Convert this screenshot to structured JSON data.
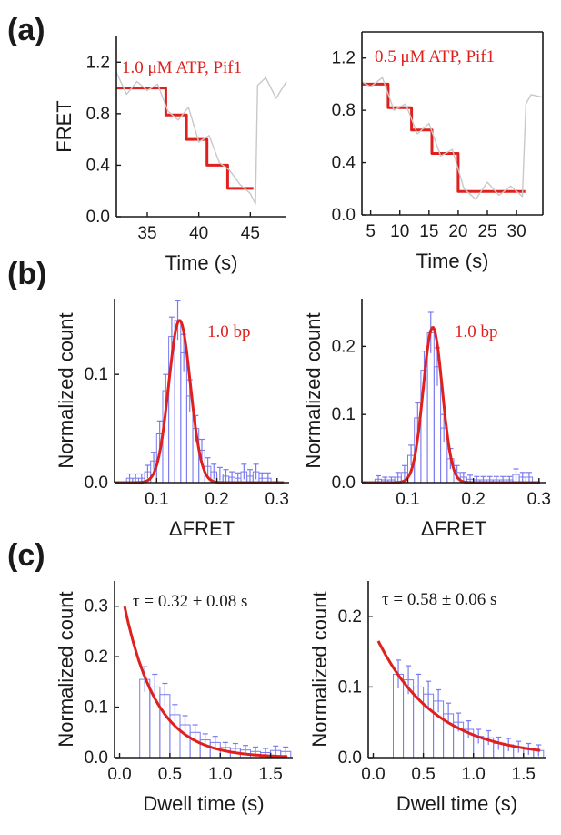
{
  "panel_labels": [
    "(a)",
    "(b)",
    "(c)"
  ],
  "colors": {
    "fit": "#e0201c",
    "raw": "#c8c8c8",
    "hist": "#7b7bf0",
    "axis": "#1a1a1a"
  },
  "chart_data": [
    {
      "id": "a-left",
      "type": "line",
      "annotation": "1.0 μM ATP, Pif1",
      "xlabel": "Time (s)",
      "ylabel": "FRET",
      "xlim": [
        32,
        48.5
      ],
      "ylim": [
        0.0,
        1.4
      ],
      "xticks": [
        "35",
        "40",
        "45"
      ],
      "xtick_values": [
        35,
        40,
        45
      ],
      "yticks": [
        "0.0",
        "0.4",
        "0.8",
        "1.2"
      ],
      "ytick_values": [
        0.0,
        0.4,
        0.8,
        1.2
      ],
      "series": [
        {
          "role": "fit",
          "x": [
            32.0,
            36.8,
            36.8,
            38.8,
            38.8,
            40.8,
            40.8,
            42.8,
            42.8,
            45.3
          ],
          "y": [
            1.0,
            1.0,
            0.79,
            0.79,
            0.6,
            0.6,
            0.4,
            0.4,
            0.22,
            0.22
          ]
        },
        {
          "role": "raw",
          "x": [
            32.0,
            33.0,
            34.0,
            35.0,
            36.0,
            37.0,
            38.0,
            39.0,
            40.0,
            41.0,
            42.0,
            43.0,
            44.0,
            45.0,
            45.5,
            45.7,
            46.5,
            47.5,
            48.5
          ],
          "y": [
            1.12,
            0.95,
            1.05,
            0.98,
            1.03,
            0.82,
            0.75,
            0.85,
            0.58,
            0.63,
            0.42,
            0.36,
            0.25,
            0.18,
            0.1,
            1.02,
            1.08,
            0.92,
            1.05
          ]
        }
      ]
    },
    {
      "id": "a-right",
      "type": "line",
      "annotation": "0.5 μM ATP, Pif1",
      "xlabel": "Time (s)",
      "ylabel": "",
      "xlim": [
        3.5,
        34.5
      ],
      "ylim": [
        0.0,
        1.4
      ],
      "xticks": [
        "5",
        "10",
        "15",
        "20",
        "25",
        "30"
      ],
      "xtick_values": [
        5,
        10,
        15,
        20,
        25,
        30
      ],
      "yticks": [
        "0.0",
        "0.4",
        "0.8",
        "1.2"
      ],
      "ytick_values": [
        0.0,
        0.4,
        0.8,
        1.2
      ],
      "series": [
        {
          "role": "fit",
          "x": [
            3.5,
            8.0,
            8.0,
            12.0,
            12.0,
            15.5,
            15.5,
            20.0,
            20.0,
            31.5
          ],
          "y": [
            1.0,
            1.0,
            0.82,
            0.82,
            0.65,
            0.65,
            0.47,
            0.47,
            0.18,
            0.18
          ]
        },
        {
          "role": "raw",
          "x": [
            3.5,
            5.0,
            7.0,
            9.0,
            11.0,
            13.0,
            15.0,
            17.0,
            19.0,
            21.0,
            23.0,
            25.0,
            27.0,
            29.0,
            31.0,
            31.6,
            32.5,
            34.5
          ],
          "y": [
            1.02,
            0.98,
            1.05,
            0.8,
            0.85,
            0.62,
            0.7,
            0.45,
            0.5,
            0.2,
            0.12,
            0.25,
            0.15,
            0.22,
            0.14,
            0.85,
            0.92,
            0.9
          ]
        }
      ]
    },
    {
      "id": "b-left",
      "type": "bar",
      "annotation": "1.0 bp",
      "xlabel": "ΔFRET",
      "ylabel": "Normalized count",
      "xlim": [
        0.03,
        0.32
      ],
      "ylim": [
        0.0,
        0.17
      ],
      "xticks": [
        "0.1",
        "0.2",
        "0.3"
      ],
      "xtick_values": [
        0.1,
        0.2,
        0.3
      ],
      "yticks": [
        "0.0",
        "0.1"
      ],
      "ytick_values": [
        0.0,
        0.1
      ],
      "bin_width": 0.01,
      "x": [
        0.055,
        0.065,
        0.075,
        0.085,
        0.095,
        0.105,
        0.115,
        0.125,
        0.135,
        0.145,
        0.155,
        0.165,
        0.175,
        0.185,
        0.195,
        0.205,
        0.215,
        0.225,
        0.235,
        0.245,
        0.255,
        0.265,
        0.275,
        0.285
      ],
      "values": [
        0.004,
        0.004,
        0.004,
        0.01,
        0.02,
        0.045,
        0.085,
        0.135,
        0.15,
        0.12,
        0.08,
        0.05,
        0.03,
        0.015,
        0.01,
        0.008,
        0.006,
        0.005,
        0.004,
        0.01,
        0.006,
        0.01,
        0.004,
        0.004
      ],
      "errors": [
        0.004,
        0.004,
        0.004,
        0.006,
        0.008,
        0.012,
        0.015,
        0.018,
        0.018,
        0.017,
        0.015,
        0.012,
        0.01,
        0.008,
        0.007,
        0.006,
        0.006,
        0.005,
        0.005,
        0.007,
        0.006,
        0.007,
        0.005,
        0.005
      ],
      "fit": {
        "type": "gaussian",
        "amplitude": 0.15,
        "center": 0.138,
        "sigma": 0.018
      }
    },
    {
      "id": "b-right",
      "type": "bar",
      "annotation": "1.0 bp",
      "xlabel": "ΔFRET",
      "ylabel": "Normalized count",
      "xlim": [
        0.03,
        0.31
      ],
      "ylim": [
        0.0,
        0.27
      ],
      "xticks": [
        "0.1",
        "0.2",
        "0.3"
      ],
      "xtick_values": [
        0.1,
        0.2,
        0.3
      ],
      "yticks": [
        "0.0",
        "0.1",
        "0.2"
      ],
      "ytick_values": [
        0.0,
        0.1,
        0.2
      ],
      "bin_width": 0.01,
      "x": [
        0.055,
        0.065,
        0.075,
        0.085,
        0.095,
        0.105,
        0.115,
        0.125,
        0.135,
        0.145,
        0.155,
        0.165,
        0.175,
        0.185,
        0.195,
        0.205,
        0.215,
        0.225,
        0.235,
        0.245,
        0.255,
        0.265,
        0.275,
        0.285
      ],
      "values": [
        0.005,
        0.004,
        0.004,
        0.008,
        0.015,
        0.04,
        0.095,
        0.165,
        0.22,
        0.17,
        0.08,
        0.035,
        0.015,
        0.008,
        0.005,
        0.004,
        0.004,
        0.004,
        0.004,
        0.004,
        0.004,
        0.012,
        0.008,
        0.008
      ],
      "errors": [
        0.005,
        0.004,
        0.004,
        0.007,
        0.01,
        0.015,
        0.022,
        0.028,
        0.03,
        0.028,
        0.02,
        0.015,
        0.01,
        0.007,
        0.006,
        0.005,
        0.005,
        0.005,
        0.005,
        0.005,
        0.005,
        0.008,
        0.007,
        0.007
      ],
      "fit": {
        "type": "gaussian",
        "amplitude": 0.228,
        "center": 0.138,
        "sigma": 0.0145
      }
    },
    {
      "id": "c-left",
      "type": "bar",
      "annotation": "τ = 0.32 ± 0.08 s",
      "xlabel": "Dwell time (s)",
      "ylabel": "Normalized count",
      "xlim": [
        -0.05,
        1.72
      ],
      "ylim": [
        0.0,
        0.35
      ],
      "xticks": [
        "0.0",
        "0.5",
        "1.0",
        "1.5"
      ],
      "xtick_values": [
        0.0,
        0.5,
        1.0,
        1.5
      ],
      "yticks": [
        "0.0",
        "0.1",
        "0.2",
        "0.3"
      ],
      "ytick_values": [
        0.0,
        0.1,
        0.2,
        0.3
      ],
      "bin_width": 0.1,
      "x": [
        0.25,
        0.35,
        0.45,
        0.55,
        0.65,
        0.75,
        0.85,
        0.95,
        1.05,
        1.15,
        1.25,
        1.35,
        1.45,
        1.55,
        1.65
      ],
      "values": [
        0.155,
        0.14,
        0.125,
        0.085,
        0.065,
        0.05,
        0.035,
        0.03,
        0.02,
        0.018,
        0.015,
        0.012,
        0.01,
        0.014,
        0.012
      ],
      "errors": [
        0.025,
        0.025,
        0.022,
        0.02,
        0.018,
        0.015,
        0.012,
        0.012,
        0.01,
        0.01,
        0.009,
        0.009,
        0.008,
        0.009,
        0.009
      ],
      "fit": {
        "type": "exponential",
        "amplitude": 0.35,
        "tau": 0.32,
        "x_start": 0.05
      }
    },
    {
      "id": "c-right",
      "type": "bar",
      "annotation": "τ = 0.58 ± 0.06 s",
      "xlabel": "Dwell time (s)",
      "ylabel": "Normalized count",
      "xlim": [
        -0.05,
        1.72
      ],
      "ylim": [
        0.0,
        0.25
      ],
      "xticks": [
        "0.0",
        "0.5",
        "1.0",
        "1.5"
      ],
      "xtick_values": [
        0.0,
        0.5,
        1.0,
        1.5
      ],
      "yticks": [
        "0.0",
        "0.1",
        "0.2"
      ],
      "ytick_values": [
        0.0,
        0.1,
        0.2
      ],
      "bin_width": 0.1,
      "x": [
        0.25,
        0.35,
        0.45,
        0.55,
        0.65,
        0.75,
        0.85,
        0.95,
        1.05,
        1.15,
        1.25,
        1.35,
        1.45,
        1.55,
        1.65
      ],
      "values": [
        0.118,
        0.11,
        0.1,
        0.09,
        0.08,
        0.062,
        0.05,
        0.04,
        0.03,
        0.028,
        0.02,
        0.018,
        0.015,
        0.012,
        0.01
      ],
      "errors": [
        0.02,
        0.02,
        0.018,
        0.018,
        0.016,
        0.015,
        0.013,
        0.012,
        0.01,
        0.01,
        0.009,
        0.009,
        0.008,
        0.008,
        0.008
      ],
      "fit": {
        "type": "exponential",
        "amplitude": 0.18,
        "tau": 0.58,
        "x_start": 0.05
      }
    }
  ]
}
